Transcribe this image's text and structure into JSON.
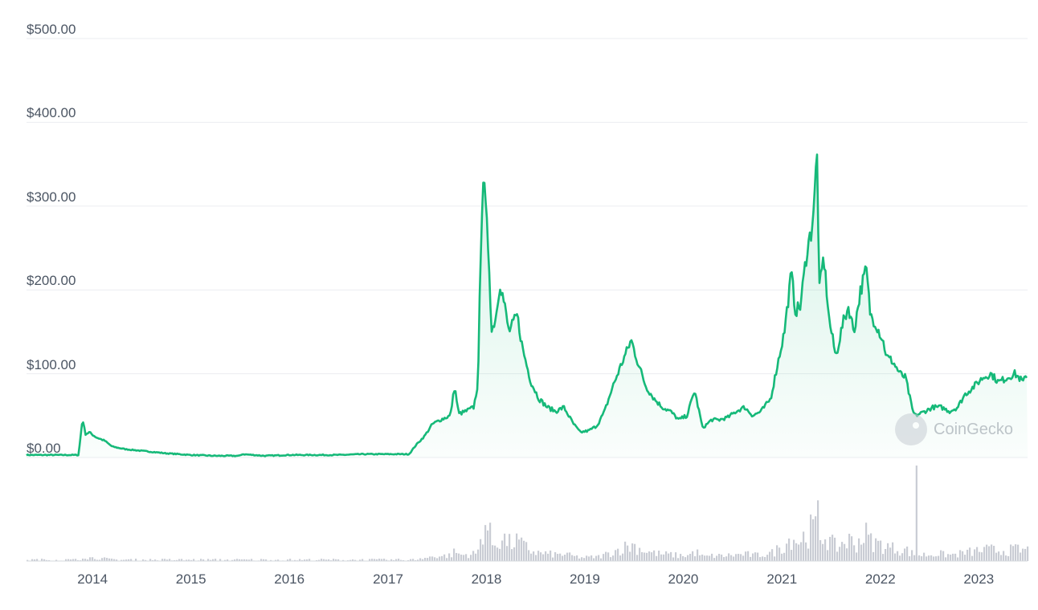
{
  "chart_data": {
    "type": "area",
    "colors": {
      "line": "#16b979",
      "grid": "#ebedf0",
      "volume": "#c9ccd4"
    },
    "y_axis": {
      "ticks": [
        "$0.00",
        "$100.00",
        "$200.00",
        "$300.00",
        "$400.00",
        "$500.00"
      ],
      "ylim": [
        0,
        500
      ]
    },
    "x_axis": {
      "ticks": [
        "2014",
        "2015",
        "2016",
        "2017",
        "2018",
        "2019",
        "2020",
        "2021",
        "2022",
        "2023"
      ]
    },
    "grid": true,
    "watermark": "CoinGecko",
    "series": [
      {
        "x": [
          "2013-05-01",
          "2013-11-10",
          "2013-11-25",
          "2013-12-05",
          "2013-12-20",
          "2014-01-15",
          "2014-02-15",
          "2014-03-15",
          "2014-05-01",
          "2014-07-01",
          "2014-10-01",
          "2015-01-01",
          "2015-04-01",
          "2015-07-01",
          "2015-07-10",
          "2015-10-01",
          "2016-01-01",
          "2016-04-01",
          "2016-07-01",
          "2016-10-01",
          "2017-01-01",
          "2017-03-20",
          "2017-04-15",
          "2017-05-15",
          "2017-06-15",
          "2017-07-15",
          "2017-08-20",
          "2017-09-05",
          "2017-09-20",
          "2017-10-15",
          "2017-11-15",
          "2017-12-01",
          "2017-12-10",
          "2017-12-19",
          "2017-12-28",
          "2018-01-10",
          "2018-01-20",
          "2018-02-06",
          "2018-02-20",
          "2018-03-10",
          "2018-03-25",
          "2018-04-10",
          "2018-04-25",
          "2018-05-15",
          "2018-06-15",
          "2018-07-15",
          "2018-08-15",
          "2018-09-15",
          "2018-10-15",
          "2018-11-20",
          "2018-12-15",
          "2019-01-15",
          "2019-02-15",
          "2019-03-15",
          "2019-04-15",
          "2019-05-15",
          "2019-06-22",
          "2019-07-15",
          "2019-08-15",
          "2019-09-15",
          "2019-10-15",
          "2019-11-15",
          "2019-12-15",
          "2020-01-15",
          "2020-02-12",
          "2020-03-13",
          "2020-04-15",
          "2020-05-15",
          "2020-06-15",
          "2020-07-15",
          "2020-08-15",
          "2020-09-15",
          "2020-10-15",
          "2020-11-20",
          "2020-12-15",
          "2021-01-10",
          "2021-02-05",
          "2021-02-20",
          "2021-03-10",
          "2021-04-05",
          "2021-04-20",
          "2021-05-05",
          "2021-05-10",
          "2021-05-20",
          "2021-06-05",
          "2021-06-25",
          "2021-07-20",
          "2021-08-15",
          "2021-09-05",
          "2021-09-25",
          "2021-10-20",
          "2021-11-10",
          "2021-11-25",
          "2021-12-15",
          "2022-01-10",
          "2022-01-25",
          "2022-02-15",
          "2022-03-15",
          "2022-04-05",
          "2022-05-01",
          "2022-05-12",
          "2022-06-15",
          "2022-07-15",
          "2022-08-15",
          "2022-09-15",
          "2022-10-15",
          "2022-11-10",
          "2022-12-15",
          "2023-01-15",
          "2023-02-15",
          "2023-03-15",
          "2023-04-15",
          "2023-05-15",
          "2023-06-15",
          "2023-07-01"
        ],
        "y": [
          3,
          3,
          47,
          28,
          30,
          24,
          20,
          13,
          10,
          8,
          5,
          3,
          2,
          2,
          4,
          2,
          3,
          3,
          3,
          4,
          4,
          4,
          15,
          25,
          40,
          45,
          50,
          85,
          52,
          55,
          60,
          90,
          240,
          340,
          300,
          240,
          150,
          170,
          210,
          180,
          150,
          160,
          170,
          130,
          90,
          70,
          60,
          55,
          60,
          40,
          30,
          32,
          38,
          55,
          85,
          110,
          140,
          115,
          85,
          70,
          60,
          55,
          45,
          50,
          80,
          35,
          45,
          45,
          48,
          55,
          60,
          50,
          55,
          70,
          110,
          150,
          220,
          175,
          180,
          250,
          270,
          320,
          380,
          200,
          240,
          165,
          120,
          160,
          180,
          150,
          200,
          225,
          170,
          160,
          140,
          120,
          115,
          100,
          95,
          55,
          50,
          55,
          60,
          60,
          55,
          60,
          75,
          85,
          95,
          100,
          90,
          95,
          100,
          90,
          100
        ]
      }
    ]
  }
}
